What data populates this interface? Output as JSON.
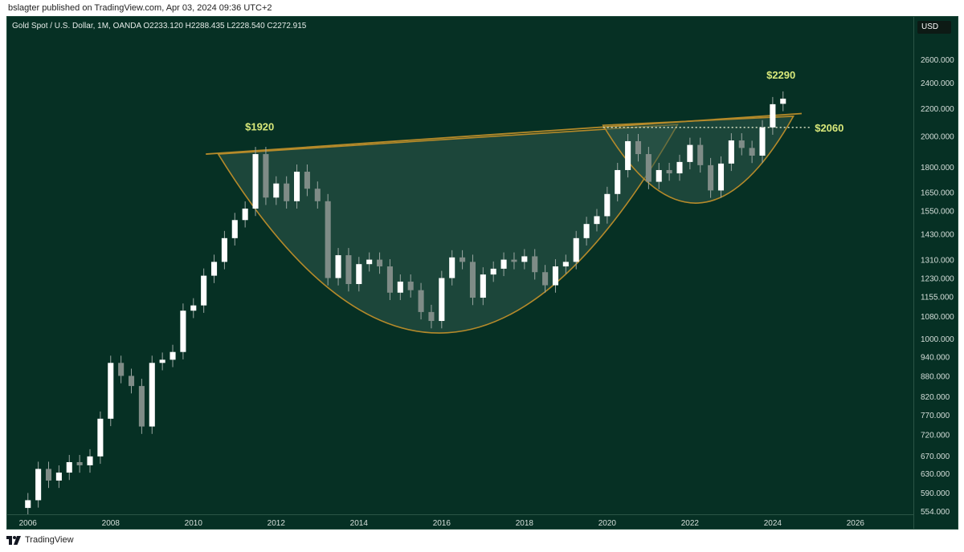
{
  "header": {
    "publish_text": "bslagter published on TradingView.com, Apr 03, 2024 09:36 UTC+2"
  },
  "symbol": {
    "text": "Gold Spot / U.S. Dollar, 1M, OANDA  O2233.120  H2288.435  L2228.540  C2272.915"
  },
  "axis": {
    "currency_label": "USD"
  },
  "footer": {
    "brand": "TradingView"
  },
  "colors": {
    "background": "#063024",
    "pattern_line": "#b58a2a",
    "pattern_fill": "#2f5a4c",
    "annotation": "#d8e87a",
    "candle": "#ffffff"
  },
  "chart_data": {
    "type": "candlestick",
    "title": "Gold Spot / U.S. Dollar, 1M, OANDA",
    "ohlc_last": {
      "open": 2233.12,
      "high": 2288.435,
      "low": 2228.54,
      "close": 2272.915
    },
    "y_scale": "log",
    "ylim": [
      554,
      2800
    ],
    "y_ticks": [
      "2600.000",
      "2400.000",
      "2200.000",
      "2000.000",
      "1800.000",
      "1650.000",
      "1550.000",
      "1430.000",
      "1310.000",
      "1230.000",
      "1155.000",
      "1080.000",
      "1000.000",
      "940.000",
      "880.000",
      "820.000",
      "770.000",
      "720.000",
      "670.000",
      "630.000",
      "590.000",
      "554.000"
    ],
    "x_ticks": [
      "2006",
      "2008",
      "2010",
      "2012",
      "2014",
      "2016",
      "2018",
      "2020",
      "2022",
      "2024",
      "2026"
    ],
    "xlim": [
      2005.5,
      2027.4
    ],
    "series": [
      {
        "values": [
          {
            "t": 2006.0,
            "o": 560,
            "c": 575
          },
          {
            "t": 2006.25,
            "o": 575,
            "c": 640
          },
          {
            "t": 2006.5,
            "o": 640,
            "c": 615
          },
          {
            "t": 2006.75,
            "o": 615,
            "c": 632
          },
          {
            "t": 2007.0,
            "o": 632,
            "c": 655
          },
          {
            "t": 2007.25,
            "o": 655,
            "c": 648
          },
          {
            "t": 2007.5,
            "o": 648,
            "c": 668
          },
          {
            "t": 2007.75,
            "o": 668,
            "c": 760
          },
          {
            "t": 2008.0,
            "o": 760,
            "c": 920
          },
          {
            "t": 2008.25,
            "o": 920,
            "c": 880
          },
          {
            "t": 2008.5,
            "o": 880,
            "c": 850
          },
          {
            "t": 2008.75,
            "o": 850,
            "c": 740
          },
          {
            "t": 2009.0,
            "o": 740,
            "c": 920
          },
          {
            "t": 2009.25,
            "o": 920,
            "c": 930
          },
          {
            "t": 2009.5,
            "o": 930,
            "c": 955
          },
          {
            "t": 2009.75,
            "o": 955,
            "c": 1100
          },
          {
            "t": 2010.0,
            "o": 1100,
            "c": 1120
          },
          {
            "t": 2010.25,
            "o": 1120,
            "c": 1240
          },
          {
            "t": 2010.5,
            "o": 1240,
            "c": 1300
          },
          {
            "t": 2010.75,
            "o": 1300,
            "c": 1410
          },
          {
            "t": 2011.0,
            "o": 1410,
            "c": 1500
          },
          {
            "t": 2011.25,
            "o": 1500,
            "c": 1560
          },
          {
            "t": 2011.5,
            "o": 1560,
            "c": 1880
          },
          {
            "t": 2011.75,
            "o": 1880,
            "c": 1620
          },
          {
            "t": 2012.0,
            "o": 1620,
            "c": 1700
          },
          {
            "t": 2012.25,
            "o": 1700,
            "c": 1600
          },
          {
            "t": 2012.5,
            "o": 1600,
            "c": 1770
          },
          {
            "t": 2012.75,
            "o": 1770,
            "c": 1670
          },
          {
            "t": 2013.0,
            "o": 1670,
            "c": 1600
          },
          {
            "t": 2013.25,
            "o": 1600,
            "c": 1230
          },
          {
            "t": 2013.5,
            "o": 1230,
            "c": 1330
          },
          {
            "t": 2013.75,
            "o": 1330,
            "c": 1205
          },
          {
            "t": 2014.0,
            "o": 1205,
            "c": 1290
          },
          {
            "t": 2014.25,
            "o": 1290,
            "c": 1310
          },
          {
            "t": 2014.5,
            "o": 1310,
            "c": 1280
          },
          {
            "t": 2014.75,
            "o": 1280,
            "c": 1170
          },
          {
            "t": 2015.0,
            "o": 1170,
            "c": 1215
          },
          {
            "t": 2015.25,
            "o": 1215,
            "c": 1180
          },
          {
            "t": 2015.5,
            "o": 1180,
            "c": 1095
          },
          {
            "t": 2015.75,
            "o": 1095,
            "c": 1062
          },
          {
            "t": 2016.0,
            "o": 1062,
            "c": 1230
          },
          {
            "t": 2016.25,
            "o": 1230,
            "c": 1320
          },
          {
            "t": 2016.5,
            "o": 1320,
            "c": 1300
          },
          {
            "t": 2016.75,
            "o": 1300,
            "c": 1150
          },
          {
            "t": 2017.0,
            "o": 1150,
            "c": 1245
          },
          {
            "t": 2017.25,
            "o": 1245,
            "c": 1270
          },
          {
            "t": 2017.5,
            "o": 1270,
            "c": 1310
          },
          {
            "t": 2017.75,
            "o": 1310,
            "c": 1300
          },
          {
            "t": 2018.0,
            "o": 1300,
            "c": 1325
          },
          {
            "t": 2018.25,
            "o": 1325,
            "c": 1255
          },
          {
            "t": 2018.5,
            "o": 1255,
            "c": 1200
          },
          {
            "t": 2018.75,
            "o": 1200,
            "c": 1280
          },
          {
            "t": 2019.0,
            "o": 1280,
            "c": 1300
          },
          {
            "t": 2019.25,
            "o": 1300,
            "c": 1410
          },
          {
            "t": 2019.5,
            "o": 1410,
            "c": 1480
          },
          {
            "t": 2019.75,
            "o": 1480,
            "c": 1520
          },
          {
            "t": 2020.0,
            "o": 1520,
            "c": 1640
          },
          {
            "t": 2020.25,
            "o": 1640,
            "c": 1780
          },
          {
            "t": 2020.5,
            "o": 1780,
            "c": 1965
          },
          {
            "t": 2020.75,
            "o": 1965,
            "c": 1880
          },
          {
            "t": 2021.0,
            "o": 1880,
            "c": 1710
          },
          {
            "t": 2021.25,
            "o": 1710,
            "c": 1780
          },
          {
            "t": 2021.5,
            "o": 1780,
            "c": 1760
          },
          {
            "t": 2021.75,
            "o": 1760,
            "c": 1830
          },
          {
            "t": 2022.0,
            "o": 1830,
            "c": 1940
          },
          {
            "t": 2022.25,
            "o": 1940,
            "c": 1810
          },
          {
            "t": 2022.5,
            "o": 1810,
            "c": 1660
          },
          {
            "t": 2022.75,
            "o": 1660,
            "c": 1820
          },
          {
            "t": 2023.0,
            "o": 1820,
            "c": 1970
          },
          {
            "t": 2023.25,
            "o": 1970,
            "c": 1920
          },
          {
            "t": 2023.5,
            "o": 1920,
            "c": 1870
          },
          {
            "t": 2023.75,
            "o": 1870,
            "c": 2060
          },
          {
            "t": 2024.0,
            "o": 2060,
            "c": 2230
          },
          {
            "t": 2024.25,
            "o": 2233.12,
            "c": 2272.915
          }
        ]
      }
    ],
    "annotations": [
      {
        "text": "$1920",
        "price": 1920,
        "time": 2011.6
      },
      {
        "text": "$2060",
        "price": 2060
      },
      {
        "text": "$2290",
        "price": 2290,
        "time": 2024.2
      }
    ],
    "patterns": [
      {
        "type": "cup",
        "from": 2010.6,
        "to": 2021.7,
        "rim_prices": [
          1880,
          2080
        ],
        "bottom_price": 1020
      },
      {
        "type": "handle",
        "from": 2019.9,
        "to": 2024.5,
        "rim_prices": [
          2075,
          2140
        ],
        "bottom_price": 1590
      }
    ],
    "resistance_line": {
      "from": 2010.3,
      "to": 2024.7,
      "prices": [
        1880,
        2160
      ]
    },
    "horizontal_line": {
      "price": 2060,
      "from": 2019.9,
      "to": 2024.9,
      "style": "dotted"
    }
  }
}
